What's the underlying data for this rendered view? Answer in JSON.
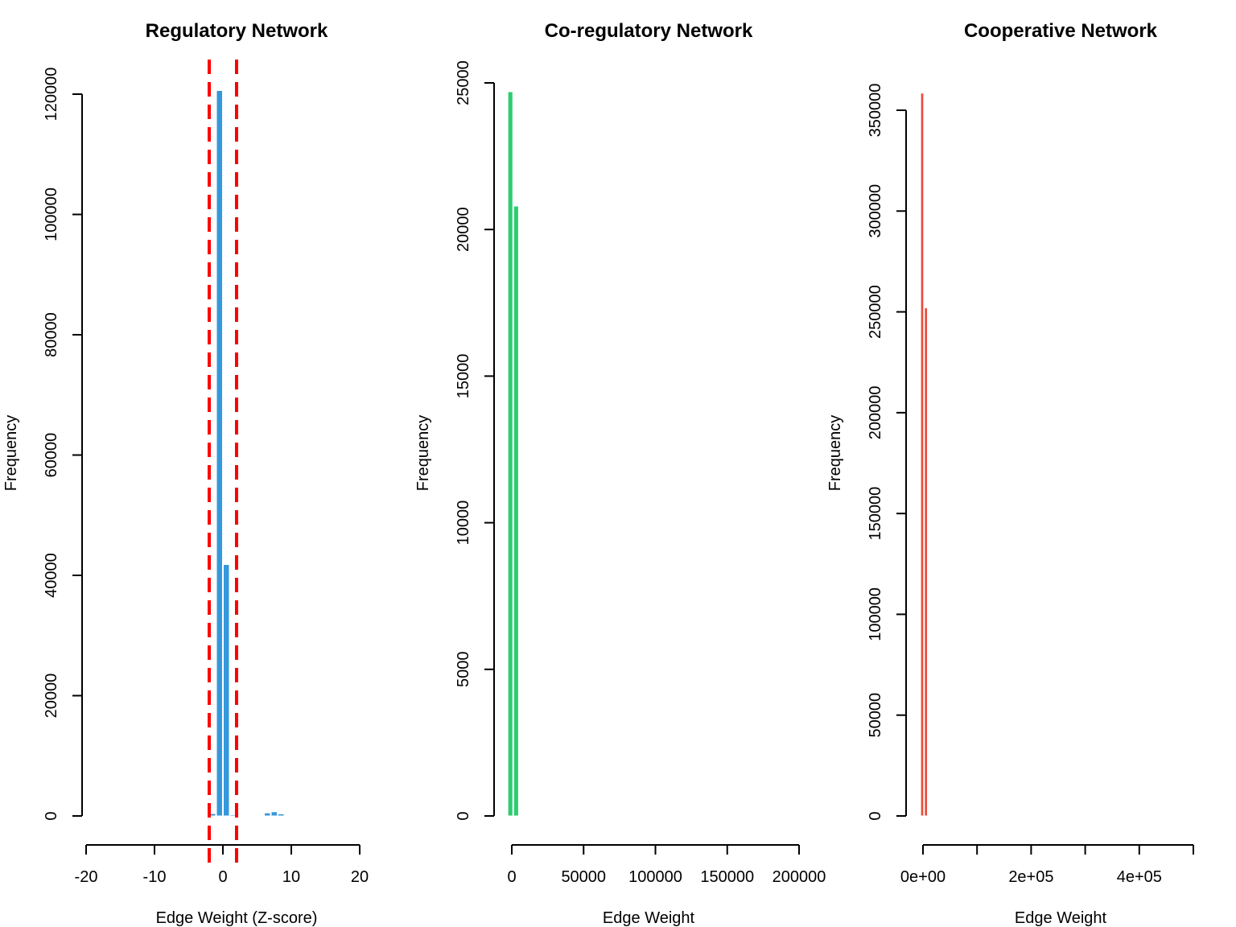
{
  "chart_data": [
    {
      "type": "bar",
      "title": "Regulatory Network",
      "xlabel": "Edge Weight (Z-score)",
      "ylabel": "Frequency",
      "color": "#3498db",
      "xlim": [
        -20,
        20
      ],
      "ylim": [
        0,
        120000
      ],
      "xticks": [
        -20,
        -10,
        0,
        10,
        20
      ],
      "xtick_labels": [
        "-20",
        "-10",
        "0",
        "10",
        "20"
      ],
      "yticks": [
        0,
        20000,
        40000,
        60000,
        80000,
        100000,
        120000
      ],
      "ytick_labels": [
        "0",
        "20000",
        "40000",
        "60000",
        "80000",
        "100000",
        "120000"
      ],
      "bins": [
        {
          "x0": -2,
          "x1": -1,
          "count": 400
        },
        {
          "x0": -1,
          "x1": 0,
          "count": 120600
        },
        {
          "x0": 0,
          "x1": 1,
          "count": 41800
        },
        {
          "x0": 1,
          "x1": 2,
          "count": 200
        },
        {
          "x0": 6,
          "x1": 7,
          "count": 500
        },
        {
          "x0": 7,
          "x1": 8,
          "count": 700
        },
        {
          "x0": 8,
          "x1": 9,
          "count": 350
        },
        {
          "x0": 9,
          "x1": 10,
          "count": 100
        }
      ],
      "threshold_lines": [
        -2,
        2
      ],
      "threshold_color": "#ff0000"
    },
    {
      "type": "bar",
      "title": "Co-regulatory Network",
      "xlabel": "Edge Weight",
      "ylabel": "Frequency",
      "color": "#2ecc71",
      "xlim": [
        0,
        200000
      ],
      "ylim": [
        0,
        25000
      ],
      "xticks": [
        0,
        50000,
        100000,
        150000,
        200000
      ],
      "xtick_labels": [
        "0",
        "50000",
        "100000",
        "150000",
        "200000"
      ],
      "yticks": [
        0,
        5000,
        10000,
        15000,
        20000,
        25000
      ],
      "ytick_labels": [
        "0",
        "5000",
        "10000",
        "15000",
        "20000",
        "25000"
      ],
      "bins": [
        {
          "x0": -3000,
          "x1": 1000,
          "count": 24700
        },
        {
          "x0": 1000,
          "x1": 5000,
          "count": 20800
        }
      ]
    },
    {
      "type": "bar",
      "title": "Cooperative Network",
      "xlabel": "Edge Weight",
      "ylabel": "Frequency",
      "color": "#e74c3c",
      "xlim": [
        0,
        500000
      ],
      "ylim": [
        0,
        350000
      ],
      "xticks": [
        0,
        100000,
        200000,
        300000,
        400000,
        500000
      ],
      "xtick_labels": [
        "0e+00",
        "",
        "2e+05",
        "",
        "4e+05",
        ""
      ],
      "yticks": [
        0,
        50000,
        100000,
        150000,
        200000,
        250000,
        300000,
        350000
      ],
      "ytick_labels": [
        "0",
        "50000",
        "100000",
        "150000",
        "200000",
        "250000",
        "300000",
        "350000"
      ],
      "bins": [
        {
          "x0": -5000,
          "x1": 2000,
          "count": 358500
        },
        {
          "x0": 2000,
          "x1": 9000,
          "count": 252000
        }
      ]
    }
  ]
}
